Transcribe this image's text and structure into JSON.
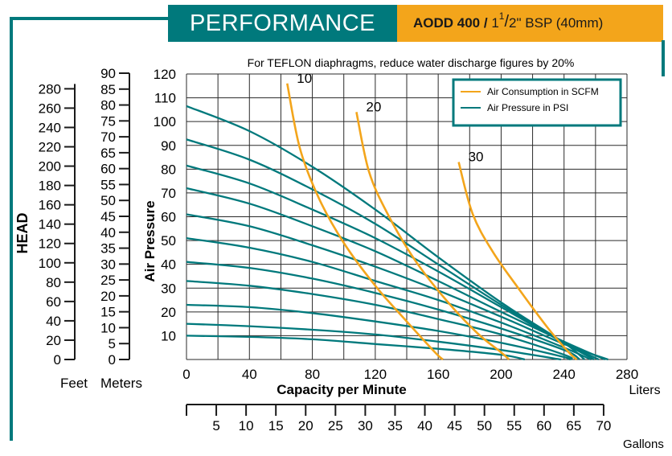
{
  "header": {
    "section_title": "PERFORMANCE",
    "model": "AODD 400 / ",
    "size_whole": "1",
    "size_num": "1",
    "size_den": "2",
    "size_rest": "\" BSP (40mm)"
  },
  "colors": {
    "teal": "#00797c",
    "orange": "#f3a51b",
    "grid": "#2a2a2a"
  },
  "chart_data": {
    "type": "line",
    "note": "For TEFLON diaphragms, reduce water discharge figures by 20%",
    "xlabel": "Capacity per Minute",
    "x_unit": "Liters",
    "ylabel": "Air Pressure",
    "xlim": [
      0,
      280
    ],
    "ylim": [
      0,
      120
    ],
    "x_ticks": [
      0,
      40,
      80,
      120,
      160,
      200,
      240,
      280
    ],
    "y_ticks": [
      10,
      20,
      30,
      40,
      50,
      60,
      70,
      80,
      90,
      100,
      110,
      120
    ],
    "gallons_unit": "Gallons",
    "gallons_ticks": [
      5,
      10,
      15,
      20,
      25,
      30,
      35,
      40,
      45,
      50,
      55,
      60,
      65,
      70
    ],
    "gallons_per_liter": 0.264,
    "head_label": "HEAD",
    "feet_label": "Feet",
    "meters_label": "Meters",
    "feet_ticks": [
      0,
      20,
      40,
      60,
      80,
      100,
      120,
      140,
      160,
      180,
      200,
      220,
      240,
      260,
      280
    ],
    "meters_ticks": [
      0,
      5,
      10,
      15,
      20,
      25,
      30,
      35,
      40,
      45,
      50,
      55,
      60,
      65,
      70,
      75,
      80,
      85,
      90
    ],
    "legend": [
      {
        "name": "Air Consumption in SCFM",
        "color": "#f3a51b"
      },
      {
        "name": "Air Pressure in PSI",
        "color": "#00797c"
      }
    ],
    "legend_position": "top-right",
    "grid": true,
    "pressure_curves": [
      {
        "points": [
          [
            0,
            106.5
          ],
          [
            40,
            96
          ],
          [
            80,
            81
          ],
          [
            120,
            63
          ],
          [
            160,
            43
          ],
          [
            200,
            24
          ],
          [
            240,
            7
          ],
          [
            253,
            0
          ]
        ]
      },
      {
        "points": [
          [
            0,
            92.5
          ],
          [
            40,
            84
          ],
          [
            80,
            71.5
          ],
          [
            120,
            57
          ],
          [
            160,
            40
          ],
          [
            200,
            23
          ],
          [
            240,
            7
          ],
          [
            259,
            0
          ]
        ]
      },
      {
        "points": [
          [
            0,
            81.5
          ],
          [
            40,
            74
          ],
          [
            80,
            63
          ],
          [
            120,
            51
          ],
          [
            160,
            37
          ],
          [
            200,
            22
          ],
          [
            240,
            7
          ],
          [
            262,
            0
          ]
        ]
      },
      {
        "points": [
          [
            0,
            72
          ],
          [
            40,
            65.5
          ],
          [
            80,
            56
          ],
          [
            120,
            45.5
          ],
          [
            160,
            33
          ],
          [
            200,
            20
          ],
          [
            240,
            7.5
          ],
          [
            266,
            0
          ]
        ]
      },
      {
        "points": [
          [
            0,
            61
          ],
          [
            40,
            56
          ],
          [
            80,
            48
          ],
          [
            120,
            39
          ],
          [
            160,
            29
          ],
          [
            200,
            18
          ],
          [
            240,
            6.5
          ],
          [
            268,
            0
          ]
        ]
      },
      {
        "points": [
          [
            0,
            51
          ],
          [
            40,
            47
          ],
          [
            80,
            41
          ],
          [
            120,
            33
          ],
          [
            160,
            25
          ],
          [
            200,
            15.5
          ],
          [
            240,
            5
          ],
          [
            257,
            0
          ]
        ]
      },
      {
        "points": [
          [
            0,
            41
          ],
          [
            40,
            38.5
          ],
          [
            80,
            34
          ],
          [
            120,
            28
          ],
          [
            160,
            21
          ],
          [
            200,
            13
          ],
          [
            240,
            4
          ],
          [
            250,
            0
          ]
        ]
      },
      {
        "points": [
          [
            0,
            33
          ],
          [
            40,
            31
          ],
          [
            80,
            27.5
          ],
          [
            120,
            23
          ],
          [
            160,
            17
          ],
          [
            200,
            10.5
          ],
          [
            240,
            2
          ],
          [
            245,
            0
          ]
        ]
      },
      {
        "points": [
          [
            0,
            23
          ],
          [
            40,
            22
          ],
          [
            80,
            19.5
          ],
          [
            120,
            16
          ],
          [
            160,
            12
          ],
          [
            200,
            7
          ],
          [
            240,
            1
          ],
          [
            243,
            0
          ]
        ]
      },
      {
        "points": [
          [
            0,
            15
          ],
          [
            40,
            14
          ],
          [
            80,
            12.5
          ],
          [
            120,
            10.5
          ],
          [
            160,
            7.5
          ],
          [
            200,
            4
          ],
          [
            238,
            0
          ]
        ]
      },
      {
        "points": [
          [
            0,
            10
          ],
          [
            40,
            9.5
          ],
          [
            80,
            8.5
          ],
          [
            120,
            6.5
          ],
          [
            160,
            4.5
          ],
          [
            200,
            2
          ],
          [
            215,
            0
          ]
        ]
      }
    ],
    "consumption_curves": [
      {
        "name": "10",
        "points": [
          [
            64,
            116
          ],
          [
            72,
            89
          ],
          [
            84,
            68
          ],
          [
            100,
            49
          ],
          [
            120,
            31
          ],
          [
            140,
            16
          ],
          [
            158,
            3
          ],
          [
            163,
            0
          ]
        ]
      },
      {
        "name": "20",
        "points": [
          [
            108,
            104
          ],
          [
            116,
            79
          ],
          [
            128,
            61
          ],
          [
            145,
            42
          ],
          [
            165,
            25
          ],
          [
            185,
            11
          ],
          [
            200,
            3
          ],
          [
            205,
            0
          ]
        ]
      },
      {
        "name": "30",
        "points": [
          [
            173,
            83
          ],
          [
            182,
            61
          ],
          [
            195,
            45
          ],
          [
            212,
            29
          ],
          [
            230,
            13
          ],
          [
            243,
            3
          ],
          [
            248,
            0
          ]
        ]
      }
    ]
  }
}
